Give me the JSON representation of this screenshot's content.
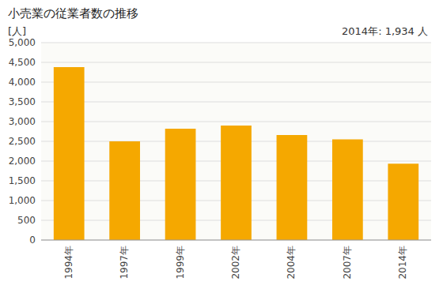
{
  "chart_data": {
    "type": "bar",
    "title": "小売業の従業者数の推移",
    "ylabel": "[人]",
    "annotation": "2014年: 1,934 人",
    "categories": [
      "1994年",
      "1997年",
      "1999年",
      "2002年",
      "2004年",
      "2007年",
      "2014年"
    ],
    "values": [
      4380,
      2500,
      2820,
      2900,
      2660,
      2550,
      1934
    ],
    "color": "#F5A800",
    "ylim": [
      0,
      5000
    ],
    "yticks": [
      0,
      500,
      {
        "value": 1000,
        "label": "1,000"
      },
      {
        "value": 1500,
        "label": "1,500"
      },
      {
        "value": 2000,
        "label": "2,000"
      },
      {
        "value": 2500,
        "label": "2,500"
      },
      {
        "value": 3000,
        "label": "3,000"
      },
      {
        "value": 3500,
        "label": "3,500"
      },
      {
        "value": 4000,
        "label": "4,000"
      },
      {
        "value": 4500,
        "label": "4,500"
      },
      {
        "value": 5000,
        "label": "5,000"
      }
    ],
    "grid": true
  }
}
